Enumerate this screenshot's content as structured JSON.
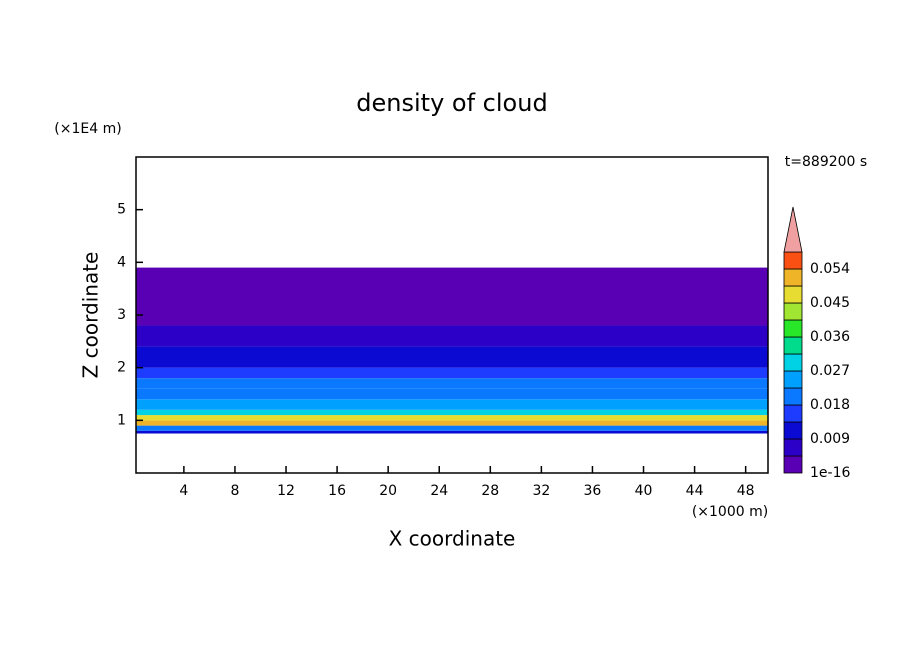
{
  "chart_data": {
    "type": "contour",
    "title": "density of cloud",
    "xlabel": "X coordinate",
    "ylabel": "Z coordinate",
    "xunit": "(×1000 m)",
    "yunit": "(×1E4 m)",
    "time_label": "t=889200 s",
    "xlim": [
      0.25,
      49.75
    ],
    "xticks": [
      4,
      8,
      12,
      16,
      20,
      24,
      28,
      32,
      36,
      40,
      44,
      48
    ],
    "ylim": [
      0,
      6
    ],
    "yticks": [
      1,
      2,
      3,
      4,
      5
    ],
    "z_edges": [
      0.75,
      0.8,
      0.9,
      1.0,
      1.1,
      1.2,
      1.4,
      1.6,
      1.8,
      2.0,
      2.4,
      2.8,
      3.0,
      3.9
    ],
    "values": [
      0.009,
      0.02,
      0.05,
      0.045,
      0.03,
      0.025,
      0.022,
      0.018,
      0.014,
      0.011,
      0.007,
      0.004,
      0.002
    ],
    "colorbar": {
      "labels": [
        1e-16,
        0.009,
        0.018,
        0.027,
        0.036,
        0.045,
        0.054
      ],
      "colors": [
        "#5a00b4",
        "#2d00c8",
        "#0a0ad2",
        "#1e3cff",
        "#0a78ff",
        "#00a0ff",
        "#00d2e6",
        "#00dc8c",
        "#28e628",
        "#a0e632",
        "#e6dc32",
        "#f0b428",
        "#fa5014"
      ],
      "over_color": "#f0a0a0"
    }
  }
}
